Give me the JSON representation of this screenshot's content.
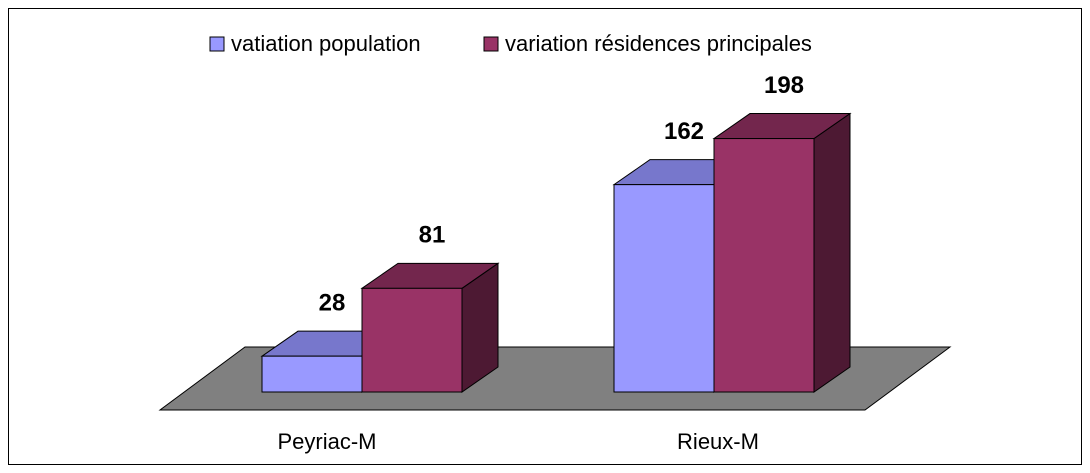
{
  "chart_data": {
    "type": "bar3d",
    "categories": [
      "Peyriac-M",
      "Rieux-M"
    ],
    "series": [
      {
        "name": "vatiation population",
        "color": "#9999ff",
        "top_color": "#7777cc",
        "side_color": "#4d4d80",
        "values": [
          28,
          162
        ]
      },
      {
        "name": "variation résidences principales",
        "color": "#993366",
        "top_color": "#73264d",
        "side_color": "#4d1933",
        "values": [
          81,
          198
        ]
      }
    ],
    "legend": "top",
    "floor_color": "#808080"
  }
}
